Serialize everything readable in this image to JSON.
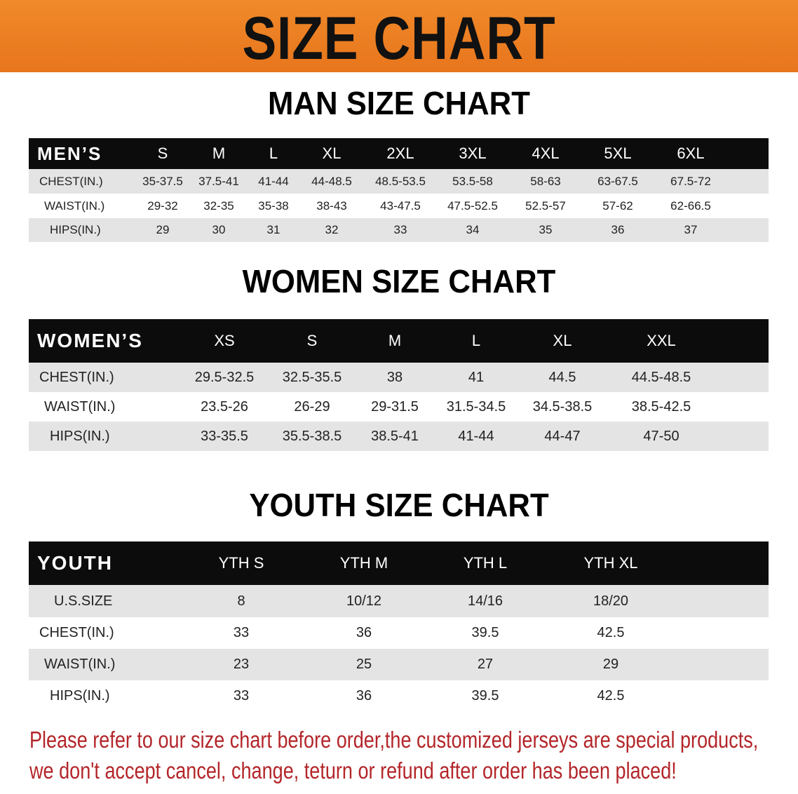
{
  "banner_title": "SIZE CHART",
  "colors": {
    "banner": "#e8751c",
    "header_bg": "#0c0c0c",
    "row_alt": "#e4e4e4",
    "note": "#b3262a"
  },
  "men": {
    "title": "MAN SIZE CHART",
    "header": "MEN’S",
    "sizes": [
      "S",
      "M",
      "L",
      "XL",
      "2XL",
      "3XL",
      "4XL",
      "5XL",
      "6XL"
    ],
    "rows": [
      {
        "label": "CHEST(IN.)",
        "values": [
          "35-37.5",
          "37.5-41",
          "41-44",
          "44-48.5",
          "48.5-53.5",
          "53.5-58",
          "58-63",
          "63-67.5",
          "67.5-72"
        ]
      },
      {
        "label": "WAIST(IN.)",
        "values": [
          "29-32",
          "32-35",
          "35-38",
          "38-43",
          "43-47.5",
          "47.5-52.5",
          "52.5-57",
          "57-62",
          "62-66.5"
        ]
      },
      {
        "label": "HIPS(IN.)",
        "values": [
          "29",
          "30",
          "31",
          "32",
          "33",
          "34",
          "35",
          "36",
          "37"
        ]
      }
    ]
  },
  "women": {
    "title": "WOMEN SIZE CHART",
    "header": "WOMEN’S",
    "sizes": [
      "XS",
      "S",
      "M",
      "L",
      "XL",
      "XXL"
    ],
    "rows": [
      {
        "label": "CHEST(IN.)",
        "values": [
          "29.5-32.5",
          "32.5-35.5",
          "38",
          "41",
          "44.5",
          "44.5-48.5"
        ]
      },
      {
        "label": "WAIST(IN.)",
        "values": [
          "23.5-26",
          "26-29",
          "29-31.5",
          "31.5-34.5",
          "34.5-38.5",
          "38.5-42.5"
        ]
      },
      {
        "label": "HIPS(IN.)",
        "values": [
          "33-35.5",
          "35.5-38.5",
          "38.5-41",
          "41-44",
          "44-47",
          "47-50"
        ]
      }
    ]
  },
  "youth": {
    "title": "YOUTH SIZE CHART",
    "header": "YOUTH",
    "sizes": [
      "YTH S",
      "YTH M",
      "YTH L",
      "YTH XL"
    ],
    "rows": [
      {
        "label": "U.S.SIZE",
        "values": [
          "8",
          "10/12",
          "14/16",
          "18/20"
        ]
      },
      {
        "label": "CHEST(IN.)",
        "values": [
          "33",
          "36",
          "39.5",
          "42.5"
        ]
      },
      {
        "label": "WAIST(IN.)",
        "values": [
          "23",
          "25",
          "27",
          "29"
        ]
      },
      {
        "label": "HIPS(IN.)",
        "values": [
          "33",
          "36",
          "39.5",
          "42.5"
        ]
      }
    ]
  },
  "note": {
    "line1": "Please refer to our size chart before order,the customized jerseys are special products,",
    "line2": "we don't accept cancel, change, teturn or refund after order has been placed!"
  }
}
